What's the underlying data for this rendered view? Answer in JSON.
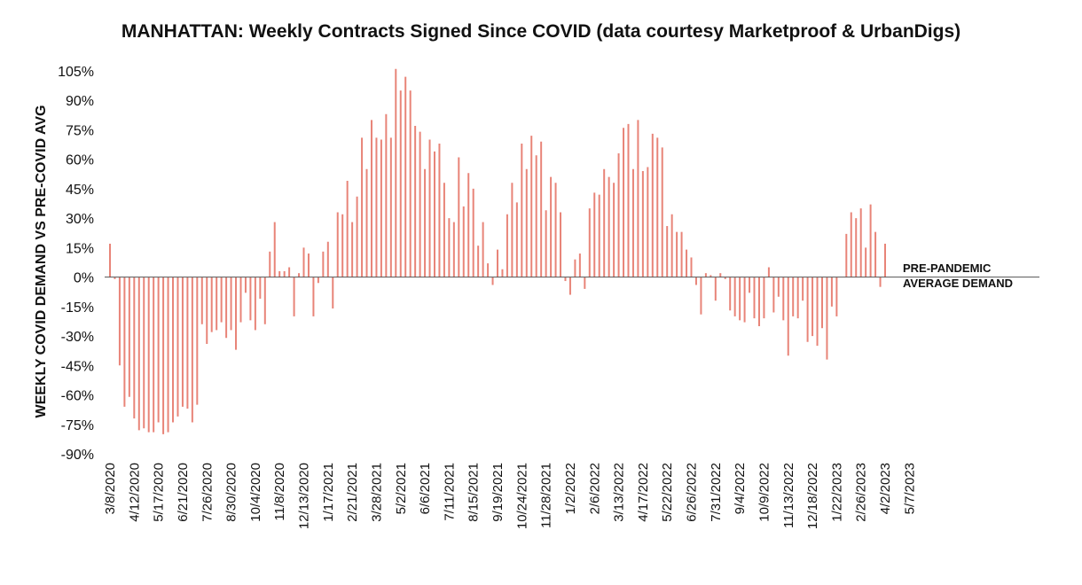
{
  "chart_data": {
    "type": "bar",
    "title": "MANHATTAN: Weekly Contracts Signed Since COVID (data courtesy Marketproof & UrbanDigs)",
    "ylabel": "WEEKLY COVID DEMAND VS PRE-COVID AVG",
    "xlabel": "",
    "ylim": [
      -90,
      105
    ],
    "yticks": [
      "-90%",
      "-75%",
      "-60%",
      "-45%",
      "-30%",
      "-15%",
      "0%",
      "15%",
      "30%",
      "45%",
      "60%",
      "75%",
      "90%",
      "105%"
    ],
    "ytick_values": [
      -90,
      -75,
      -60,
      -45,
      -30,
      -15,
      0,
      15,
      30,
      45,
      60,
      75,
      90,
      105
    ],
    "xticks": [
      "3/8/2020",
      "4/12/2020",
      "5/17/2020",
      "6/21/2020",
      "7/26/2020",
      "8/30/2020",
      "10/4/2020",
      "11/8/2020",
      "12/13/2020",
      "1/17/2021",
      "2/21/2021",
      "3/28/2021",
      "5/2/2021",
      "6/6/2021",
      "7/11/2021",
      "8/15/2021",
      "9/19/2021",
      "10/24/2021",
      "11/28/2021",
      "1/2/2022",
      "2/6/2022",
      "3/13/2022",
      "4/17/2022",
      "5/22/2022",
      "6/26/2022",
      "7/31/2022",
      "9/4/2022",
      "10/9/2022",
      "11/13/2022",
      "12/18/2022",
      "1/22/2023",
      "2/26/2023",
      "4/2/2023",
      "5/7/2023"
    ],
    "reference_label": [
      "PRE-PANDEMIC",
      "AVERAGE DEMAND"
    ],
    "bar_color": "#e88478",
    "grid": false,
    "week_start": "3/8/2020",
    "values": [
      17,
      -1,
      -45,
      -66,
      -61,
      -72,
      -78,
      -77,
      -79,
      -79,
      -74,
      -80,
      -79,
      -74,
      -71,
      -66,
      -67,
      -74,
      -65,
      -24,
      -34,
      -28,
      -27,
      -23,
      -31,
      -27,
      -37,
      -23,
      -8,
      -22,
      -27,
      -11,
      -24,
      13,
      28,
      3,
      3,
      5,
      -20,
      2,
      15,
      12,
      -20,
      -3,
      13,
      18,
      -16,
      33,
      32,
      49,
      28,
      41,
      71,
      55,
      80,
      71,
      70,
      83,
      71,
      106,
      95,
      102,
      95,
      77,
      74,
      55,
      70,
      64,
      68,
      48,
      30,
      28,
      61,
      36,
      53,
      45,
      16,
      28,
      7,
      -4,
      14,
      4,
      32,
      48,
      38,
      68,
      55,
      72,
      62,
      69,
      34,
      51,
      48,
      33,
      -2,
      -9,
      9,
      12,
      -6,
      35,
      43,
      42,
      55,
      51,
      48,
      63,
      76,
      78,
      55,
      80,
      54,
      56,
      73,
      71,
      66,
      26,
      32,
      23,
      23,
      14,
      10,
      -4,
      -19,
      2,
      1,
      -12,
      2,
      -1,
      -17,
      -20,
      -22,
      -23,
      -8,
      -21,
      -25,
      -21,
      5,
      -18,
      -10,
      -22,
      -40,
      -20,
      -21,
      -12,
      -33,
      -30,
      -35,
      -26,
      -42,
      -15,
      -20,
      0,
      22,
      33,
      30,
      35,
      15,
      37,
      23,
      -5,
      17
    ]
  }
}
